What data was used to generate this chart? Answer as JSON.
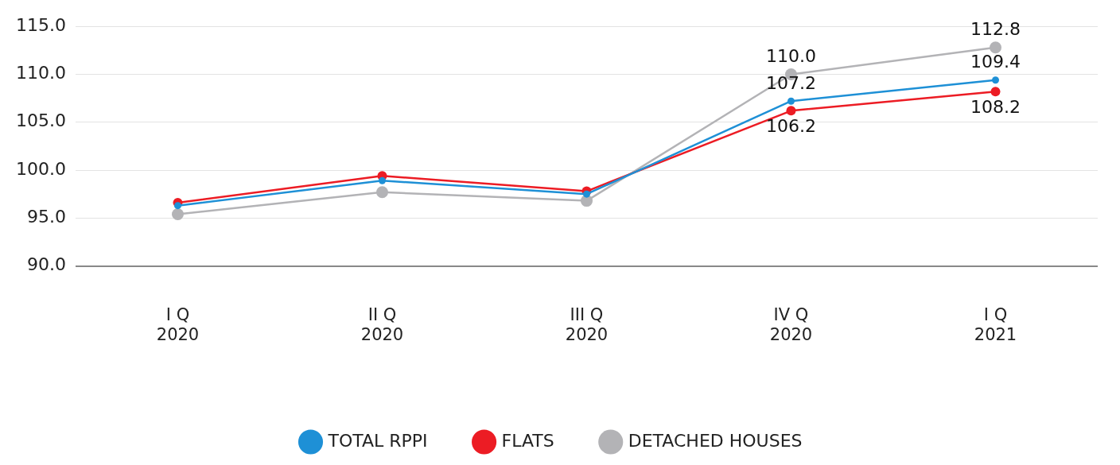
{
  "chart_data": {
    "type": "line",
    "categories": [
      "I Q\n2020",
      "II Q\n2020",
      "III Q\n2020",
      "IV Q\n2020",
      "I Q\n2021"
    ],
    "series": [
      {
        "name": "TOTAL RPPI",
        "color": "#1e90d6",
        "values": [
          96.3,
          98.9,
          97.5,
          107.2,
          109.4
        ],
        "value_labels": [
          null,
          null,
          null,
          "107.2",
          "109.4"
        ]
      },
      {
        "name": "FLATS",
        "color": "#ec1c24",
        "values": [
          96.6,
          99.4,
          97.8,
          106.2,
          108.2
        ],
        "value_labels": [
          null,
          null,
          null,
          "106.2",
          "108.2"
        ]
      },
      {
        "name": "DETACHED HOUSES",
        "color": "#b3b3b6",
        "values": [
          95.4,
          97.7,
          96.8,
          110.0,
          112.8
        ],
        "value_labels": [
          null,
          null,
          null,
          "110.0",
          "112.8"
        ]
      }
    ],
    "ylim": [
      90,
      115
    ],
    "yticks": [
      {
        "value": 90,
        "label": "90.0"
      },
      {
        "value": 95,
        "label": "95.0"
      },
      {
        "value": 100,
        "label": "100.0"
      },
      {
        "value": 105,
        "label": "105.0"
      },
      {
        "value": 110,
        "label": "110.0"
      },
      {
        "value": 115,
        "label": "115.0"
      }
    ],
    "grid": "y",
    "legend": "bottom",
    "marker": "circle",
    "line_style": "solid"
  }
}
